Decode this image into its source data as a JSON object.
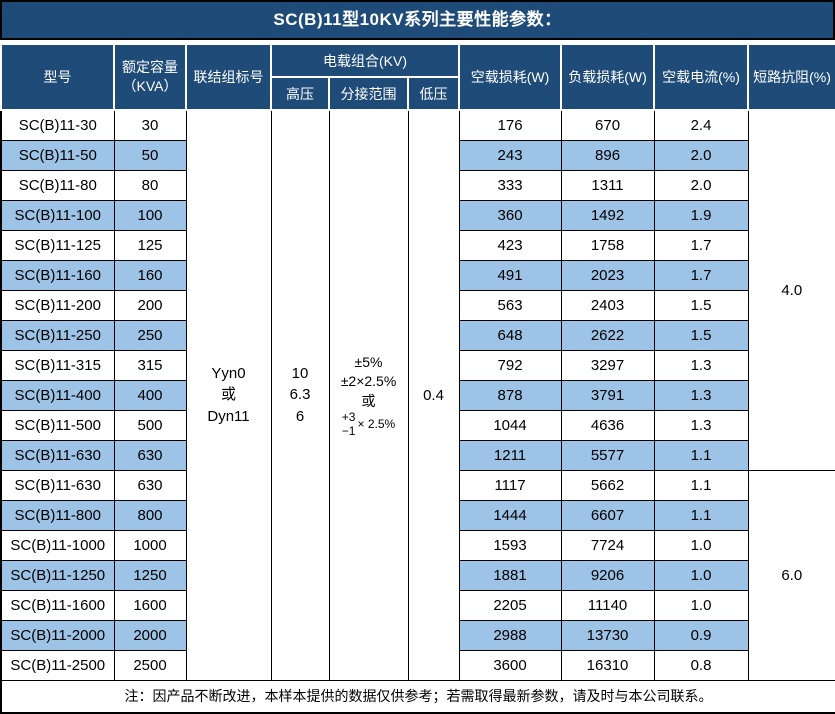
{
  "title": "SC(B)11型10KV系列主要性能参数：",
  "header": {
    "model": "型号",
    "capacity_line1": "额定容量",
    "capacity_line2": "（KVA）",
    "connection": "联结组标号",
    "voltage_group": "电载组合(KV)",
    "hv": "高压",
    "tap_range": "分接范围",
    "lv": "低压",
    "no_load_loss": "空载损耗(W)",
    "load_loss": "负载损耗(W)",
    "no_load_current": "空载电流(%)",
    "impedance": "短路抗阻(%)"
  },
  "merged": {
    "connection_lines": [
      "Yyn0",
      "或",
      "Dyn11"
    ],
    "hv_lines": [
      "10",
      "6.3",
      "6"
    ],
    "tap_lines": [
      "±5%",
      "±2×2.5%",
      "或"
    ],
    "tap_frac_top": "+3",
    "tap_frac_bottom": "−1",
    "tap_frac_suffix": "× 2.5%",
    "lv": "0.4",
    "impedance_group1": "4.0",
    "impedance_group2": "6.0"
  },
  "rows": [
    {
      "model": "SC(B)11-30",
      "kva": "30",
      "no_load": "176",
      "load": "670",
      "current": "2.4"
    },
    {
      "model": "SC(B)11-50",
      "kva": "50",
      "no_load": "243",
      "load": "896",
      "current": "2.0"
    },
    {
      "model": "SC(B)11-80",
      "kva": "80",
      "no_load": "333",
      "load": "1311",
      "current": "2.0"
    },
    {
      "model": "SC(B)11-100",
      "kva": "100",
      "no_load": "360",
      "load": "1492",
      "current": "1.9"
    },
    {
      "model": "SC(B)11-125",
      "kva": "125",
      "no_load": "423",
      "load": "1758",
      "current": "1.7"
    },
    {
      "model": "SC(B)11-160",
      "kva": "160",
      "no_load": "491",
      "load": "2023",
      "current": "1.7"
    },
    {
      "model": "SC(B)11-200",
      "kva": "200",
      "no_load": "563",
      "load": "2403",
      "current": "1.5"
    },
    {
      "model": "SC(B)11-250",
      "kva": "250",
      "no_load": "648",
      "load": "2622",
      "current": "1.5"
    },
    {
      "model": "SC(B)11-315",
      "kva": "315",
      "no_load": "792",
      "load": "3297",
      "current": "1.3"
    },
    {
      "model": "SC(B)11-400",
      "kva": "400",
      "no_load": "878",
      "load": "3791",
      "current": "1.3"
    },
    {
      "model": "SC(B)11-500",
      "kva": "500",
      "no_load": "1044",
      "load": "4636",
      "current": "1.3"
    },
    {
      "model": "SC(B)11-630",
      "kva": "630",
      "no_load": "1211",
      "load": "5577",
      "current": "1.1"
    },
    {
      "model": "SC(B)11-630",
      "kva": "630",
      "no_load": "1117",
      "load": "5662",
      "current": "1.1"
    },
    {
      "model": "SC(B)11-800",
      "kva": "800",
      "no_load": "1444",
      "load": "6607",
      "current": "1.1"
    },
    {
      "model": "SC(B)11-1000",
      "kva": "1000",
      "no_load": "1593",
      "load": "7724",
      "current": "1.0"
    },
    {
      "model": "SC(B)11-1250",
      "kva": "1250",
      "no_load": "1881",
      "load": "9206",
      "current": "1.0"
    },
    {
      "model": "SC(B)11-1600",
      "kva": "1600",
      "no_load": "2205",
      "load": "11140",
      "current": "1.0"
    },
    {
      "model": "SC(B)11-2000",
      "kva": "2000",
      "no_load": "2988",
      "load": "13730",
      "current": "0.9"
    },
    {
      "model": "SC(B)11-2500",
      "kva": "2500",
      "no_load": "3600",
      "load": "16310",
      "current": "0.8"
    }
  ],
  "impedance_group1_rowspan": 12,
  "impedance_group2_rowspan": 7,
  "note": "注：因产品不断改进，本样本提供的数据仅供参考；若需取得最新参数，请及时与本公司联系。",
  "colors": {
    "header_bg": "#1F4B78",
    "alt_row_bg": "#9DC3E6",
    "row_bg": "#FFFFFF",
    "header_text": "#FFFFFF",
    "body_text": "#000000"
  }
}
